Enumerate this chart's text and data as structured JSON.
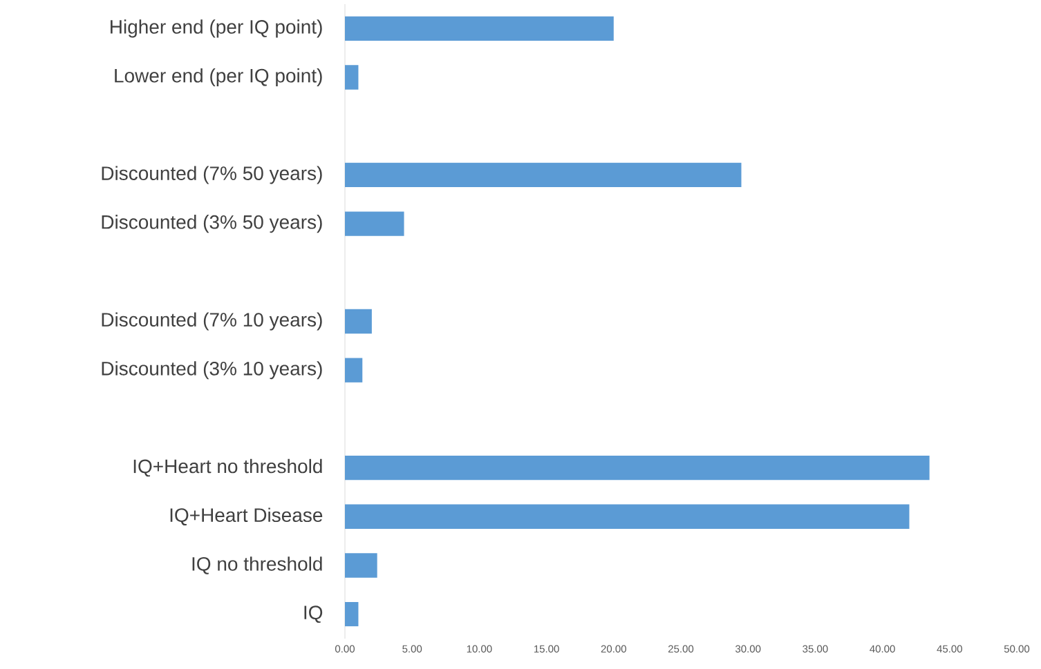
{
  "chart_data": {
    "type": "bar",
    "orientation": "horizontal",
    "categories": [
      "Higher end (per IQ point)",
      "Lower end (per IQ point)",
      null,
      "Discounted  (7% 50 years)",
      "Discounted (3% 50 years)",
      null,
      "Discounted (7% 10 years)",
      "Discounted (3% 10 years)",
      null,
      "IQ+Heart no threshold",
      "IQ+Heart Disease",
      "IQ no threshold",
      "IQ"
    ],
    "values": [
      20.0,
      1.0,
      null,
      29.5,
      4.4,
      null,
      2.0,
      1.3,
      null,
      43.5,
      42.0,
      2.4,
      1.0
    ],
    "color": "#5b9bd5",
    "xlim": [
      0,
      50
    ],
    "xticks": [
      {
        "value": 0,
        "label": "0.00"
      },
      {
        "value": 5,
        "label": "5.00"
      },
      {
        "value": 10,
        "label": "10.00"
      },
      {
        "value": 15,
        "label": "15.00"
      },
      {
        "value": 20,
        "label": "20.00"
      },
      {
        "value": 25,
        "label": "25.00"
      },
      {
        "value": 30,
        "label": "30.00"
      },
      {
        "value": 35,
        "label": "35.00"
      },
      {
        "value": 40,
        "label": "40.00"
      },
      {
        "value": 45,
        "label": "45.00"
      },
      {
        "value": 50,
        "label": "50.00"
      }
    ]
  }
}
